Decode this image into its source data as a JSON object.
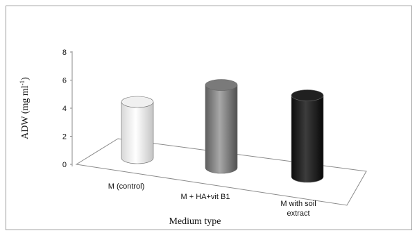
{
  "chart_data": {
    "type": "bar",
    "style": "3d-cylinder",
    "categories": [
      "M (control)",
      "M + HA+vit B1",
      [
        "M with soil",
        "extract"
      ]
    ],
    "values": [
      4.0,
      5.9,
      5.8
    ],
    "colors": [
      "#f0f0f0",
      "#7a7a7a",
      "#202020"
    ],
    "ylabel": "ADW (mg ml",
    "ylabel_sup": "-1",
    "ylabel_close": ")",
    "xlabel": "Medium  type",
    "ylim": [
      0,
      8
    ],
    "yticks": [
      0,
      2,
      4,
      6,
      8
    ],
    "grid": false,
    "legend": "none"
  }
}
